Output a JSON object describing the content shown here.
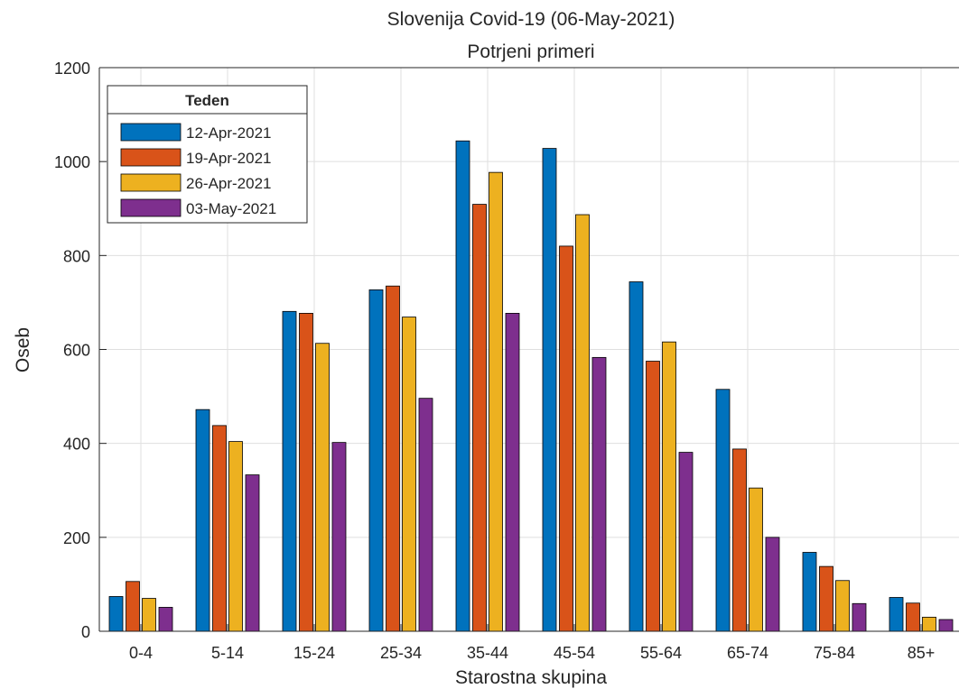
{
  "chart_data": {
    "type": "bar",
    "title": "Slovenija Covid-19 (06-May-2021)",
    "subtitle": "Potrjeni primeri",
    "xlabel": "Starostna skupina",
    "ylabel": "Oseb",
    "ylim": [
      0,
      1200
    ],
    "yticks": [
      0,
      200,
      400,
      600,
      800,
      1000,
      1200
    ],
    "grid": true,
    "legend_title": "Teden",
    "legend_position": "top-left",
    "categories": [
      "0-4",
      "5-14",
      "15-24",
      "25-34",
      "35-44",
      "45-54",
      "55-64",
      "65-74",
      "75-84",
      "85+"
    ],
    "series": [
      {
        "name": "12-Apr-2021",
        "color": "#0072BD",
        "values": [
          74,
          472,
          681,
          727,
          1044,
          1028,
          744,
          515,
          168,
          72
        ]
      },
      {
        "name": "19-Apr-2021",
        "color": "#D95319",
        "values": [
          106,
          438,
          677,
          735,
          909,
          820,
          575,
          388,
          138,
          60
        ]
      },
      {
        "name": "26-Apr-2021",
        "color": "#EDB120",
        "values": [
          70,
          404,
          613,
          669,
          977,
          887,
          616,
          305,
          108,
          30
        ]
      },
      {
        "name": "03-May-2021",
        "color": "#7E2F8E",
        "values": [
          51,
          333,
          402,
          496,
          677,
          583,
          381,
          200,
          59,
          25
        ]
      }
    ]
  }
}
